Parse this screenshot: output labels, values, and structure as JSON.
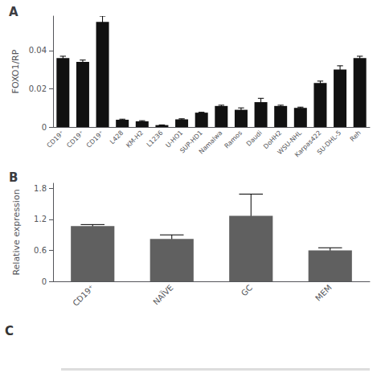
{
  "chart_data": [
    {
      "type": "bar",
      "title": "A",
      "categories": [
        "CD19⁺",
        "CD19⁺",
        "CD19⁺",
        "L428",
        "KM-H2",
        "L1236",
        "U-HO1",
        "SUP-HD1",
        "Namalwa",
        "Ramos",
        "Daudi",
        "DoHH2",
        "WSU-NHL",
        "Karpas422",
        "SU-DHL-5",
        "Reh"
      ],
      "values": [
        0.036,
        0.034,
        0.055,
        0.0038,
        0.003,
        0.001,
        0.004,
        0.0075,
        0.011,
        0.009,
        0.013,
        0.011,
        0.01,
        0.023,
        0.03,
        0.036
      ],
      "errors": [
        0.001,
        0.001,
        0.003,
        0.0003,
        0.0003,
        0.0001,
        0.0003,
        0.0002,
        0.0004,
        0.001,
        0.002,
        0.0004,
        0.0004,
        0.001,
        0.002,
        0.001
      ],
      "color": "#111111",
      "y_label": "FOXO1/RP",
      "ylim": [
        0,
        0.058
      ],
      "yticks": [
        0,
        0.02,
        0.04
      ],
      "grid": false
    },
    {
      "type": "bar",
      "title": "B",
      "categories": [
        "CD19⁺",
        "NAÏVE",
        "GC",
        "MEM"
      ],
      "values": [
        1.07,
        0.82,
        1.27,
        0.6
      ],
      "errors": [
        0.03,
        0.08,
        0.42,
        0.05
      ],
      "color": "#606060",
      "y_label": "Relative expression",
      "ylim": [
        0,
        1.9
      ],
      "yticks": [
        0,
        0.6,
        1.2,
        1.8
      ],
      "grid": false,
      "annotations": [
        "C"
      ]
    }
  ]
}
